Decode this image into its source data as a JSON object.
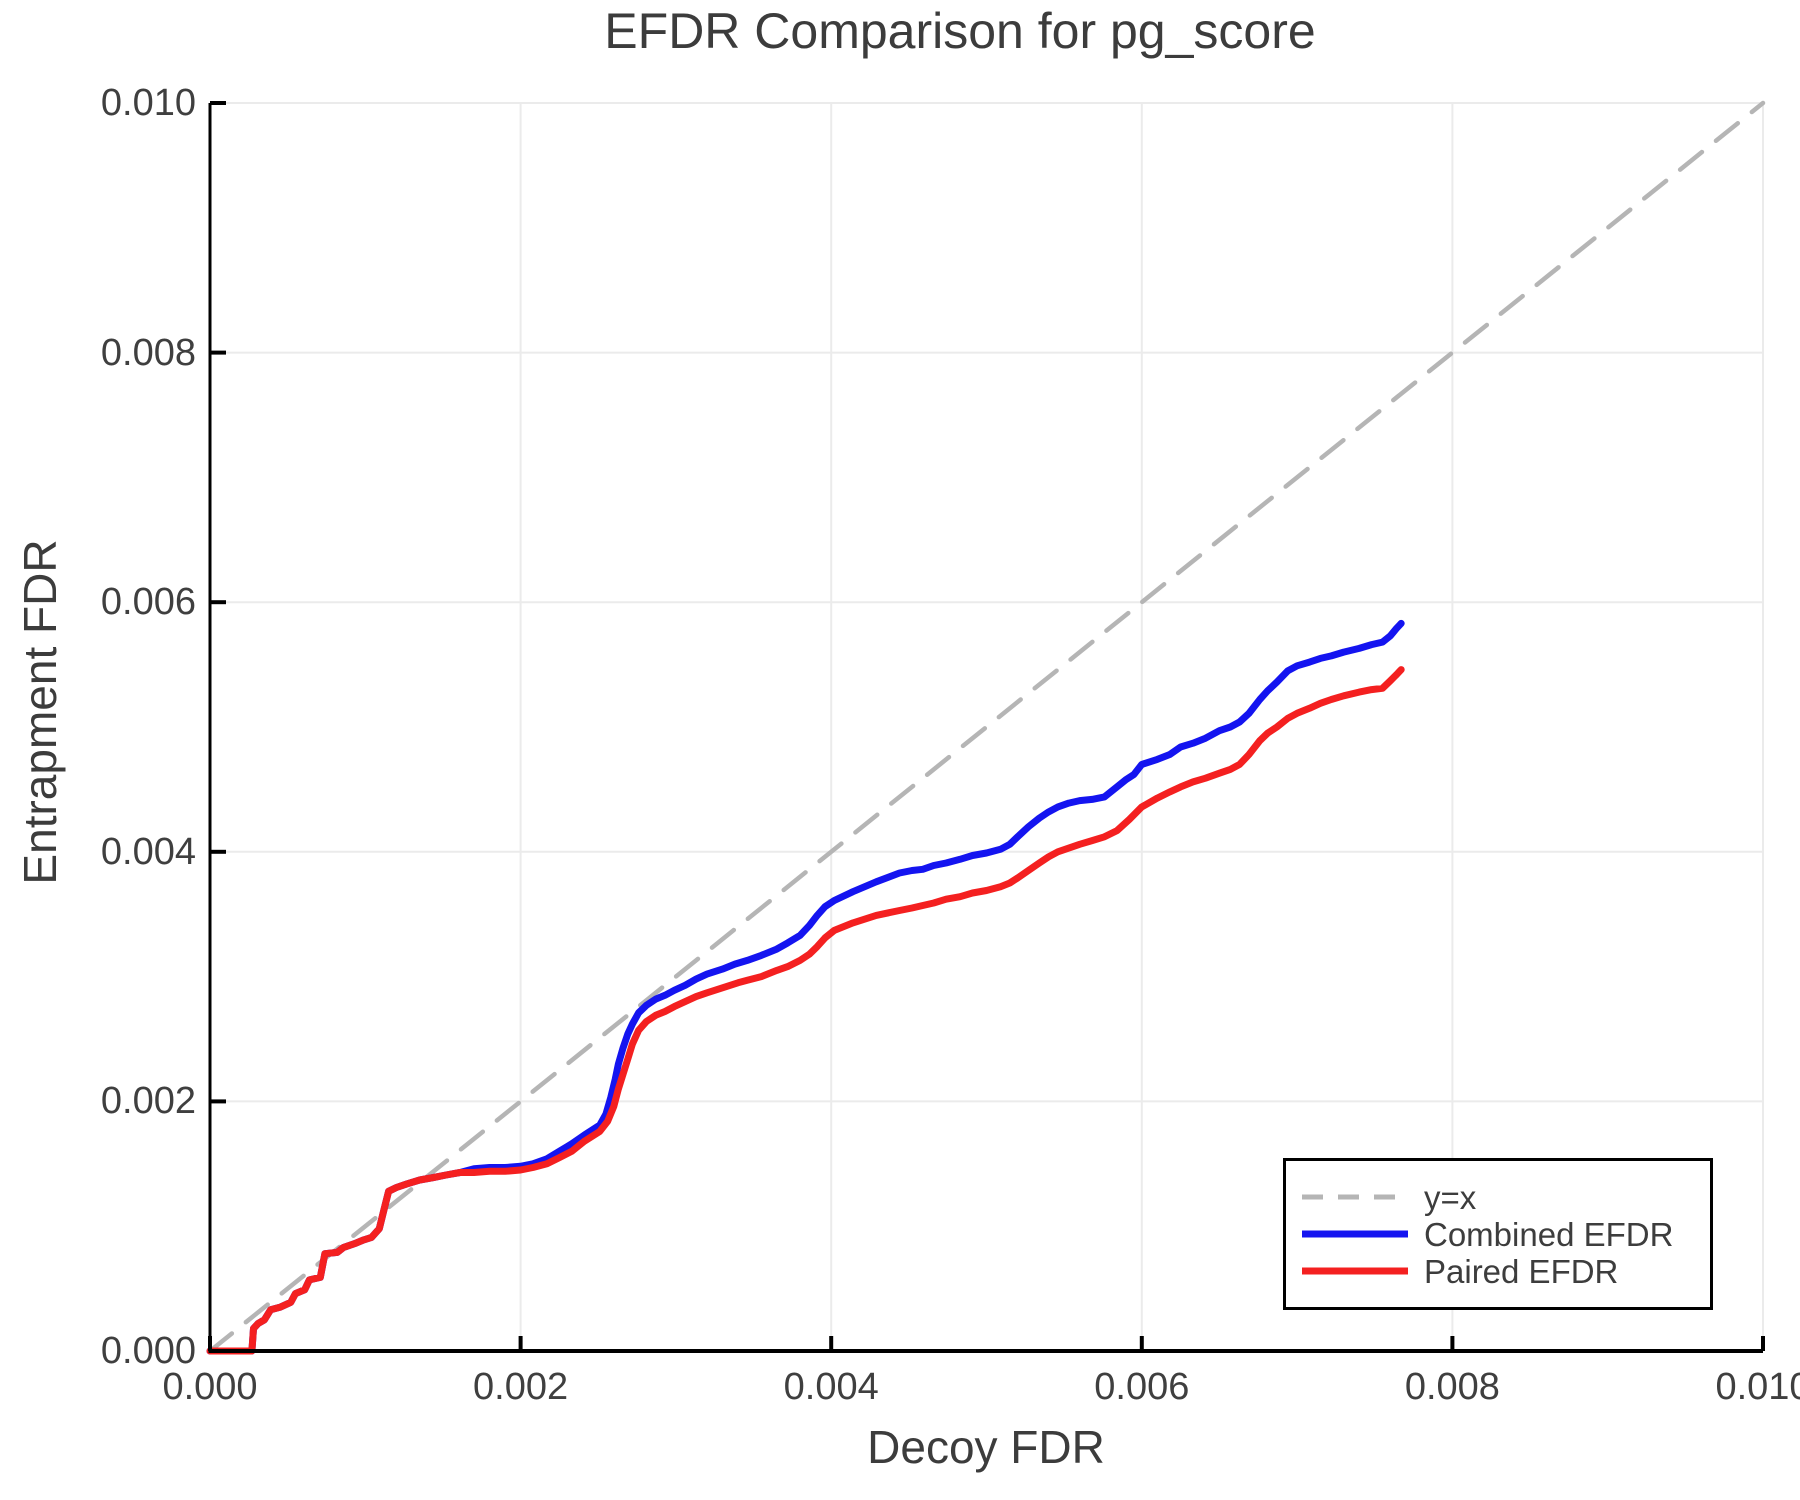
{
  "title": "EFDR Comparison for pg_score",
  "x_axis": {
    "label": "Decoy FDR",
    "tick_labels": [
      "0.000",
      "0.002",
      "0.004",
      "0.006",
      "0.008",
      "0.010"
    ],
    "tick_values": [
      0,
      0.002,
      0.004,
      0.006,
      0.008,
      0.01
    ]
  },
  "y_axis": {
    "label": "Entrapment FDR",
    "tick_labels": [
      "0.000",
      "0.002",
      "0.004",
      "0.006",
      "0.008",
      "0.010"
    ],
    "tick_values": [
      0,
      0.002,
      0.004,
      0.006,
      0.008,
      0.01
    ]
  },
  "legend": {
    "items": [
      {
        "label": "y=x",
        "style": "dashed",
        "color": "#b5b5b5"
      },
      {
        "label": "Combined EFDR",
        "style": "solid",
        "color": "#1414f0"
      },
      {
        "label": "Paired EFDR",
        "style": "solid",
        "color": "#f42020"
      }
    ]
  },
  "colors": {
    "background": "#ffffff",
    "grid": "#ebebeb",
    "axis": "#000000",
    "text": "#3d3d3d",
    "reference": "#b5b5b5",
    "combined": "#1414f0",
    "paired": "#f42020"
  },
  "chart_data": {
    "type": "line",
    "title": "EFDR Comparison for pg_score",
    "xlabel": "Decoy FDR",
    "ylabel": "Entrapment FDR",
    "xlim": [
      0,
      0.01
    ],
    "ylim": [
      0,
      0.01
    ],
    "grid": true,
    "legend_position": "bottom-right",
    "xticks": {
      "values": [
        0,
        0.002,
        0.004,
        0.006,
        0.008,
        0.01
      ],
      "labels": [
        "0.000",
        "0.002",
        "0.004",
        "0.006",
        "0.008",
        "0.010"
      ]
    },
    "yticks": {
      "values": [
        0,
        0.002,
        0.004,
        0.006,
        0.008,
        0.01
      ],
      "labels": [
        "0.000",
        "0.002",
        "0.004",
        "0.006",
        "0.008",
        "0.010"
      ]
    },
    "series": [
      {
        "name": "y=x",
        "style": "dashed",
        "color": "#b5b5b5",
        "width": 4.5,
        "dash": "28 18",
        "points": [
          [
            0,
            0
          ],
          [
            0.01,
            0.01
          ]
        ]
      },
      {
        "name": "Combined EFDR",
        "style": "solid",
        "color": "#1414f0",
        "width": 7,
        "points": [
          [
            0.0,
            0.0
          ],
          [
            0.00027,
            0.0
          ],
          [
            0.00028,
            0.00018
          ],
          [
            0.00031,
            0.00022
          ],
          [
            0.00035,
            0.00025
          ],
          [
            0.00039,
            0.00033
          ],
          [
            0.00045,
            0.00035
          ],
          [
            0.00052,
            0.00039
          ],
          [
            0.00055,
            0.00046
          ],
          [
            0.00061,
            0.00049
          ],
          [
            0.00064,
            0.00057
          ],
          [
            0.00071,
            0.00059
          ],
          [
            0.00074,
            0.00078
          ],
          [
            0.00082,
            0.00079
          ],
          [
            0.00086,
            0.00083
          ],
          [
            0.00093,
            0.00086
          ],
          [
            0.00099,
            0.00089
          ],
          [
            0.00104,
            0.00091
          ],
          [
            0.00109,
            0.00098
          ],
          [
            0.00112,
            0.00113
          ],
          [
            0.00115,
            0.00128
          ],
          [
            0.0012,
            0.00131
          ],
          [
            0.00127,
            0.00134
          ],
          [
            0.00135,
            0.00137
          ],
          [
            0.00144,
            0.00139
          ],
          [
            0.00152,
            0.00141
          ],
          [
            0.00161,
            0.00143
          ],
          [
            0.0017,
            0.00146
          ],
          [
            0.0018,
            0.00147
          ],
          [
            0.0019,
            0.00147
          ],
          [
            0.002,
            0.00148
          ],
          [
            0.00208,
            0.0015
          ],
          [
            0.00217,
            0.00154
          ],
          [
            0.00225,
            0.0016
          ],
          [
            0.00233,
            0.00166
          ],
          [
            0.00241,
            0.00173
          ],
          [
            0.00251,
            0.00181
          ],
          [
            0.00255,
            0.0019
          ],
          [
            0.00258,
            0.00203
          ],
          [
            0.00261,
            0.00218
          ],
          [
            0.00263,
            0.0023
          ],
          [
            0.00266,
            0.00243
          ],
          [
            0.00269,
            0.00254
          ],
          [
            0.00272,
            0.00262
          ],
          [
            0.00276,
            0.00271
          ],
          [
            0.00281,
            0.00277
          ],
          [
            0.00287,
            0.00282
          ],
          [
            0.00293,
            0.00285
          ],
          [
            0.00299,
            0.00289
          ],
          [
            0.00306,
            0.00293
          ],
          [
            0.00313,
            0.00298
          ],
          [
            0.0032,
            0.00302
          ],
          [
            0.0033,
            0.00306
          ],
          [
            0.00338,
            0.0031
          ],
          [
            0.00346,
            0.00313
          ],
          [
            0.00355,
            0.00317
          ],
          [
            0.00365,
            0.00322
          ],
          [
            0.00372,
            0.00327
          ],
          [
            0.0038,
            0.00333
          ],
          [
            0.00386,
            0.00341
          ],
          [
            0.00391,
            0.00349
          ],
          [
            0.00396,
            0.00356
          ],
          [
            0.00402,
            0.00361
          ],
          [
            0.00414,
            0.00368
          ],
          [
            0.00429,
            0.00376
          ],
          [
            0.00444,
            0.00383
          ],
          [
            0.00452,
            0.00385
          ],
          [
            0.00459,
            0.00386
          ],
          [
            0.00466,
            0.00389
          ],
          [
            0.00474,
            0.00391
          ],
          [
            0.00483,
            0.00394
          ],
          [
            0.00491,
            0.00397
          ],
          [
            0.005,
            0.00399
          ],
          [
            0.00509,
            0.00402
          ],
          [
            0.00515,
            0.00406
          ],
          [
            0.0052,
            0.00412
          ],
          [
            0.00527,
            0.0042
          ],
          [
            0.00534,
            0.00427
          ],
          [
            0.0054,
            0.00432
          ],
          [
            0.00546,
            0.00436
          ],
          [
            0.00553,
            0.00439
          ],
          [
            0.0056,
            0.00441
          ],
          [
            0.00568,
            0.00442
          ],
          [
            0.00576,
            0.00444
          ],
          [
            0.00584,
            0.00452
          ],
          [
            0.0059,
            0.00458
          ],
          [
            0.00595,
            0.00462
          ],
          [
            0.006,
            0.0047
          ],
          [
            0.0061,
            0.00474
          ],
          [
            0.00618,
            0.00478
          ],
          [
            0.00625,
            0.00484
          ],
          [
            0.00633,
            0.00487
          ],
          [
            0.00641,
            0.00491
          ],
          [
            0.0065,
            0.00497
          ],
          [
            0.00657,
            0.005
          ],
          [
            0.00663,
            0.00504
          ],
          [
            0.00669,
            0.00511
          ],
          [
            0.00676,
            0.00522
          ],
          [
            0.00681,
            0.00529
          ],
          [
            0.00687,
            0.00536
          ],
          [
            0.00694,
            0.00545
          ],
          [
            0.007,
            0.00549
          ],
          [
            0.00708,
            0.00552
          ],
          [
            0.00715,
            0.00555
          ],
          [
            0.00722,
            0.00557
          ],
          [
            0.0073,
            0.0056
          ],
          [
            0.0074,
            0.00563
          ],
          [
            0.00748,
            0.00566
          ],
          [
            0.00755,
            0.00568
          ],
          [
            0.0076,
            0.00573
          ],
          [
            0.00764,
            0.00579
          ],
          [
            0.00767,
            0.00583
          ]
        ]
      },
      {
        "name": "Paired EFDR",
        "style": "solid",
        "color": "#f42020",
        "width": 7,
        "points": [
          [
            0.0,
            0.0
          ],
          [
            0.00027,
            0.0
          ],
          [
            0.00028,
            0.00018
          ],
          [
            0.00031,
            0.00022
          ],
          [
            0.00035,
            0.00025
          ],
          [
            0.00039,
            0.00033
          ],
          [
            0.00045,
            0.00035
          ],
          [
            0.00052,
            0.00039
          ],
          [
            0.00055,
            0.00046
          ],
          [
            0.00061,
            0.00049
          ],
          [
            0.00064,
            0.00057
          ],
          [
            0.00071,
            0.00059
          ],
          [
            0.00074,
            0.00078
          ],
          [
            0.00082,
            0.00079
          ],
          [
            0.00086,
            0.00083
          ],
          [
            0.00093,
            0.00086
          ],
          [
            0.00099,
            0.00089
          ],
          [
            0.00104,
            0.00091
          ],
          [
            0.00109,
            0.00098
          ],
          [
            0.00112,
            0.00113
          ],
          [
            0.00115,
            0.00128
          ],
          [
            0.0012,
            0.00131
          ],
          [
            0.00127,
            0.00134
          ],
          [
            0.00135,
            0.00137
          ],
          [
            0.00144,
            0.00139
          ],
          [
            0.00152,
            0.00141
          ],
          [
            0.00161,
            0.00143
          ],
          [
            0.0017,
            0.00143
          ],
          [
            0.0018,
            0.00144
          ],
          [
            0.0019,
            0.00144
          ],
          [
            0.002,
            0.00145
          ],
          [
            0.00208,
            0.00147
          ],
          [
            0.00217,
            0.0015
          ],
          [
            0.00225,
            0.00155
          ],
          [
            0.00233,
            0.0016
          ],
          [
            0.00241,
            0.00168
          ],
          [
            0.00251,
            0.00176
          ],
          [
            0.00256,
            0.00184
          ],
          [
            0.0026,
            0.00196
          ],
          [
            0.00263,
            0.0021
          ],
          [
            0.00266,
            0.00222
          ],
          [
            0.00269,
            0.00234
          ],
          [
            0.00272,
            0.00246
          ],
          [
            0.00276,
            0.00257
          ],
          [
            0.00281,
            0.00264
          ],
          [
            0.00287,
            0.00269
          ],
          [
            0.00293,
            0.00272
          ],
          [
            0.00299,
            0.00276
          ],
          [
            0.00306,
            0.0028
          ],
          [
            0.00313,
            0.00284
          ],
          [
            0.0032,
            0.00287
          ],
          [
            0.0033,
            0.00291
          ],
          [
            0.0034,
            0.00295
          ],
          [
            0.00346,
            0.00297
          ],
          [
            0.00355,
            0.003
          ],
          [
            0.00365,
            0.00305
          ],
          [
            0.00372,
            0.00308
          ],
          [
            0.0038,
            0.00313
          ],
          [
            0.00386,
            0.00318
          ],
          [
            0.00391,
            0.00324
          ],
          [
            0.00396,
            0.00331
          ],
          [
            0.00402,
            0.00337
          ],
          [
            0.00414,
            0.00343
          ],
          [
            0.00429,
            0.00349
          ],
          [
            0.00444,
            0.00353
          ],
          [
            0.00452,
            0.00355
          ],
          [
            0.00459,
            0.00357
          ],
          [
            0.00466,
            0.00359
          ],
          [
            0.00474,
            0.00362
          ],
          [
            0.00483,
            0.00364
          ],
          [
            0.00491,
            0.00367
          ],
          [
            0.005,
            0.00369
          ],
          [
            0.00509,
            0.00372
          ],
          [
            0.00515,
            0.00375
          ],
          [
            0.0052,
            0.00379
          ],
          [
            0.00527,
            0.00385
          ],
          [
            0.00534,
            0.00391
          ],
          [
            0.0054,
            0.00396
          ],
          [
            0.00546,
            0.004
          ],
          [
            0.00553,
            0.00403
          ],
          [
            0.0056,
            0.00406
          ],
          [
            0.00568,
            0.00409
          ],
          [
            0.00576,
            0.00412
          ],
          [
            0.00584,
            0.00417
          ],
          [
            0.00592,
            0.00426
          ],
          [
            0.006,
            0.00436
          ],
          [
            0.0061,
            0.00443
          ],
          [
            0.00618,
            0.00448
          ],
          [
            0.00625,
            0.00452
          ],
          [
            0.00633,
            0.00456
          ],
          [
            0.00641,
            0.00459
          ],
          [
            0.0065,
            0.00463
          ],
          [
            0.00657,
            0.00466
          ],
          [
            0.00663,
            0.0047
          ],
          [
            0.00669,
            0.00478
          ],
          [
            0.00676,
            0.00489
          ],
          [
            0.00681,
            0.00495
          ],
          [
            0.00687,
            0.005
          ],
          [
            0.00694,
            0.00507
          ],
          [
            0.007,
            0.00511
          ],
          [
            0.00708,
            0.00515
          ],
          [
            0.00715,
            0.00519
          ],
          [
            0.00722,
            0.00522
          ],
          [
            0.0073,
            0.00525
          ],
          [
            0.0074,
            0.00528
          ],
          [
            0.00748,
            0.0053
          ],
          [
            0.00755,
            0.00531
          ],
          [
            0.0076,
            0.00537
          ],
          [
            0.00764,
            0.00542
          ],
          [
            0.00767,
            0.00546
          ]
        ]
      }
    ]
  }
}
